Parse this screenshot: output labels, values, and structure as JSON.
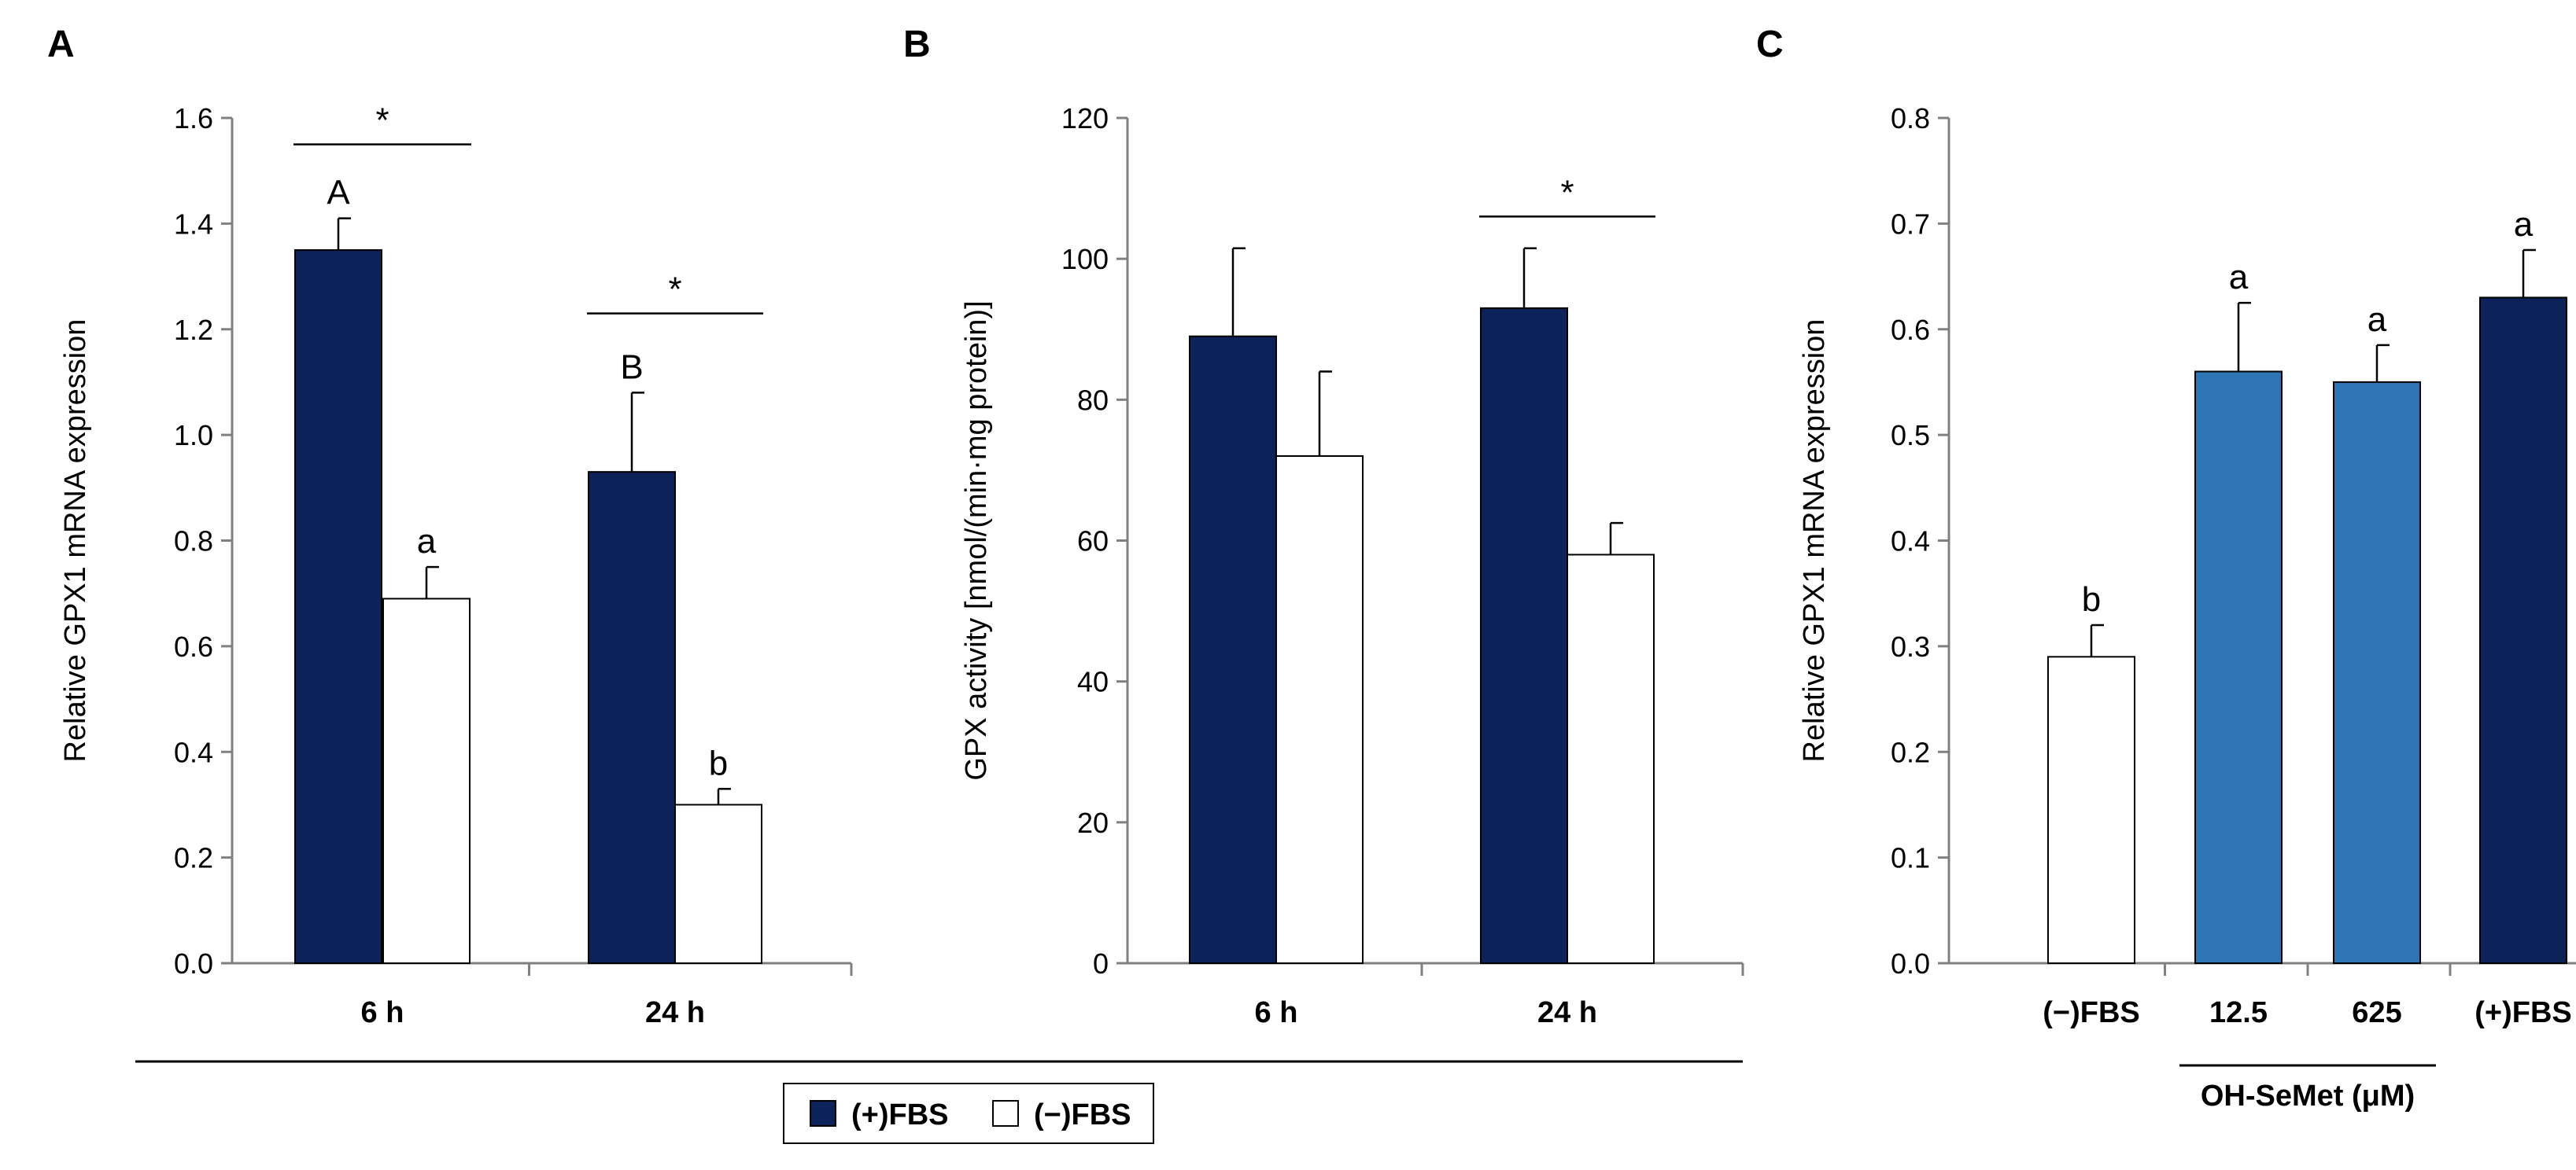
{
  "colors": {
    "plus_fbs": "#0c2259",
    "minus_fbs": "#ffffff",
    "ohsemet": "#2e75b6",
    "axis": "#808080"
  },
  "legend": {
    "items": [
      {
        "label": "(+)FBS",
        "color": "#0c2259"
      },
      {
        "label": "(−)FBS",
        "color": "#ffffff"
      }
    ]
  },
  "chart_data": [
    {
      "panel": "A",
      "type": "bar",
      "ylabel": "Relative GPX1 mRNA expression",
      "ylim": [
        0,
        1.6
      ],
      "yticks": [
        "0.0",
        "0.2",
        "0.4",
        "0.6",
        "0.8",
        "1.0",
        "1.2",
        "1.4",
        "1.6"
      ],
      "categories": [
        "6 h",
        "24 h"
      ],
      "series": [
        {
          "name": "(+)FBS",
          "color": "#0c2259",
          "values": [
            1.35,
            0.93
          ],
          "errors": [
            0.06,
            0.15
          ],
          "labels": [
            "A",
            "B"
          ]
        },
        {
          "name": "(−)FBS",
          "color": "#ffffff",
          "values": [
            0.69,
            0.3
          ],
          "errors": [
            0.06,
            0.03
          ],
          "labels": [
            "a",
            "b"
          ]
        }
      ],
      "significance": [
        {
          "category": 0,
          "label": "*",
          "y": 1.55
        },
        {
          "category": 1,
          "label": "*",
          "y": 1.23
        }
      ]
    },
    {
      "panel": "B",
      "type": "bar",
      "ylabel": "GPX activity [nmol/(min·mg protein)]",
      "ylim": [
        0,
        120
      ],
      "yticks": [
        "0",
        "20",
        "40",
        "60",
        "80",
        "100",
        "120"
      ],
      "categories": [
        "6 h",
        "24 h"
      ],
      "series": [
        {
          "name": "(+)FBS",
          "color": "#0c2259",
          "values": [
            89,
            93
          ],
          "errors": [
            12.5,
            8.5
          ],
          "labels": [
            "",
            ""
          ]
        },
        {
          "name": "(−)FBS",
          "color": "#ffffff",
          "values": [
            72,
            58
          ],
          "errors": [
            12,
            4.5
          ],
          "labels": [
            "",
            ""
          ]
        }
      ],
      "significance": [
        {
          "category": 1,
          "label": "*",
          "y": 106
        }
      ]
    },
    {
      "panel": "C",
      "type": "bar",
      "ylabel": "Relative GPX1 mRNA expression",
      "ylim": [
        0,
        0.8
      ],
      "yticks": [
        "0.0",
        "0.1",
        "0.2",
        "0.3",
        "0.4",
        "0.5",
        "0.6",
        "0.7",
        "0.8"
      ],
      "categories": [
        "(−)FBS",
        "12.5",
        "625",
        "(+)FBS"
      ],
      "group_label": "OH-SeMet (μM)",
      "bars": [
        {
          "value": 0.29,
          "error": 0.03,
          "color": "#ffffff",
          "label": "b"
        },
        {
          "value": 0.56,
          "error": 0.065,
          "color": "#2e75b6",
          "label": "a"
        },
        {
          "value": 0.55,
          "error": 0.035,
          "color": "#2e75b6",
          "label": "a"
        },
        {
          "value": 0.63,
          "error": 0.045,
          "color": "#0c2259",
          "label": "a"
        }
      ]
    }
  ]
}
